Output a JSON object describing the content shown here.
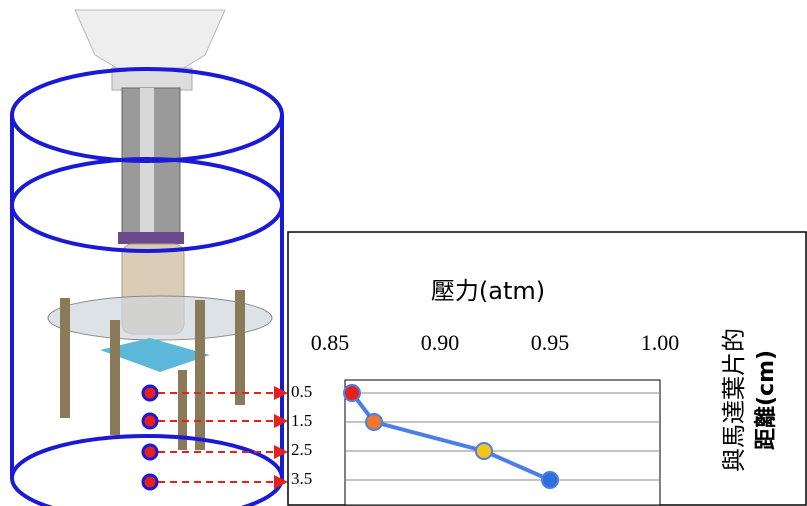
{
  "chart_data": {
    "type": "line",
    "x_label": "壓力(atm)",
    "y_label": [
      "與馬達葉片的",
      "距離(cm)"
    ],
    "x": [
      0.86,
      0.87,
      0.92,
      0.95
    ],
    "values": [
      0.5,
      1.5,
      2.5,
      3.5
    ],
    "color": "#4a7ee8",
    "point_colors": [
      "#e8201c",
      "#f07828",
      "#f5c518",
      "#2f6fe0"
    ],
    "xlim": [
      0.85,
      1.0
    ],
    "xticks": [
      0.85,
      {
        "value": 0.9,
        "label": "0.90"
      },
      0.95,
      {
        "value": 1.0,
        "label": "1.00"
      }
    ],
    "ylim": [
      0.5,
      3.5
    ],
    "yticks": [
      0.5,
      1.5,
      2.5,
      3.5
    ],
    "y_inverted": true,
    "grid": true
  }
}
